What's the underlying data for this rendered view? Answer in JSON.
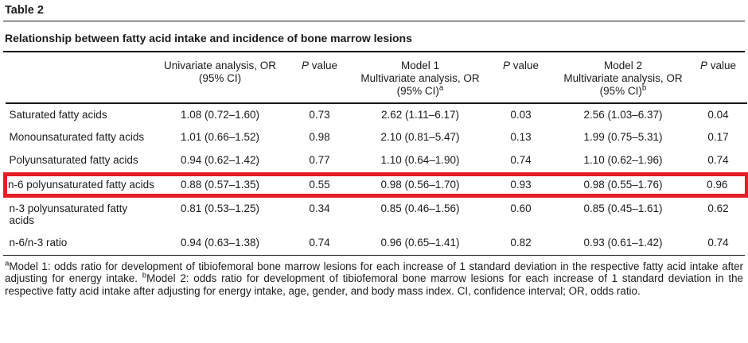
{
  "page": {
    "table_label": "Table 2",
    "caption": "Relationship between fatty acid intake and incidence of bone marrow lesions"
  },
  "table": {
    "headers": {
      "univariate": {
        "line1": "Univariate analysis, OR",
        "line2": "(95% CI)"
      },
      "p1": {
        "p": "P",
        "rest": " value"
      },
      "model1": {
        "line1": "Model 1",
        "line2": "Multivariate analysis, OR",
        "line3": "(95% CI)",
        "sup": "a"
      },
      "p2": {
        "p": "P",
        "rest": " value"
      },
      "model2": {
        "line1": "Model 2",
        "line2": "Multivariate analysis, OR",
        "line3": "(95% CI)",
        "sup": "b"
      },
      "p3": {
        "p": "P",
        "rest": " value"
      }
    },
    "rows": [
      {
        "label": "Saturated fatty acids",
        "univariate": "1.08 (0.72–1.60)",
        "p1": "0.73",
        "model1": "2.62 (1.11–6.17)",
        "p2": "0.03",
        "model2": "2.56 (1.03–6.37)",
        "p3": "0.04",
        "highlighted": false
      },
      {
        "label": "Monounsaturated fatty acids",
        "univariate": "1.01 (0.66–1.52)",
        "p1": "0.98",
        "model1": "2.10 (0.81–5.47)",
        "p2": "0.13",
        "model2": "1.99 (0.75–5.31)",
        "p3": "0.17",
        "highlighted": false
      },
      {
        "label": "Polyunsaturated fatty acids",
        "univariate": "0.94 (0.62–1.42)",
        "p1": "0.77",
        "model1": "1.10 (0.64–1.90)",
        "p2": "0.74",
        "model2": "1.10 (0.62–1.96)",
        "p3": "0.74",
        "highlighted": false
      },
      {
        "label": "n-6 polyunsaturated fatty acids",
        "univariate": "0.88 (0.57–1.35)",
        "p1": "0.55",
        "model1": "0.98 (0.56–1.70)",
        "p2": "0.93",
        "model2": "0.98 (0.55–1.76)",
        "p3": "0.96",
        "highlighted": true
      },
      {
        "label": "n-3 polyunsaturated fatty acids",
        "univariate": "0.81 (0.53–1.25)",
        "p1": "0.34",
        "model1": "0.85 (0.46–1.56)",
        "p2": "0.60",
        "model2": "0.85 (0.45–1.61)",
        "p3": "0.62",
        "highlighted": false
      },
      {
        "label": "n-6/n-3 ratio",
        "univariate": "0.94 (0.63–1.38)",
        "p1": "0.74",
        "model1": "0.96 (0.65–1.41)",
        "p2": "0.82",
        "model2": "0.93 (0.61–1.42)",
        "p3": "0.74",
        "highlighted": false
      }
    ]
  },
  "footnote": {
    "sup_a": "a",
    "text_a": "Model 1: odds ratio for development of tibiofemoral bone marrow lesions for each increase of 1 standard deviation in the respective fatty acid intake after adjusting for energy intake. ",
    "sup_b": "b",
    "text_b": "Model 2: odds ratio for development of tibiofemoral bone marrow lesions for each increase of 1 standard deviation in the respective fatty acid intake after adjusting for energy intake, age, gender, and body mass index. CI, confidence interval; OR, odds ratio."
  },
  "highlight": {
    "color": "#e41e25"
  }
}
